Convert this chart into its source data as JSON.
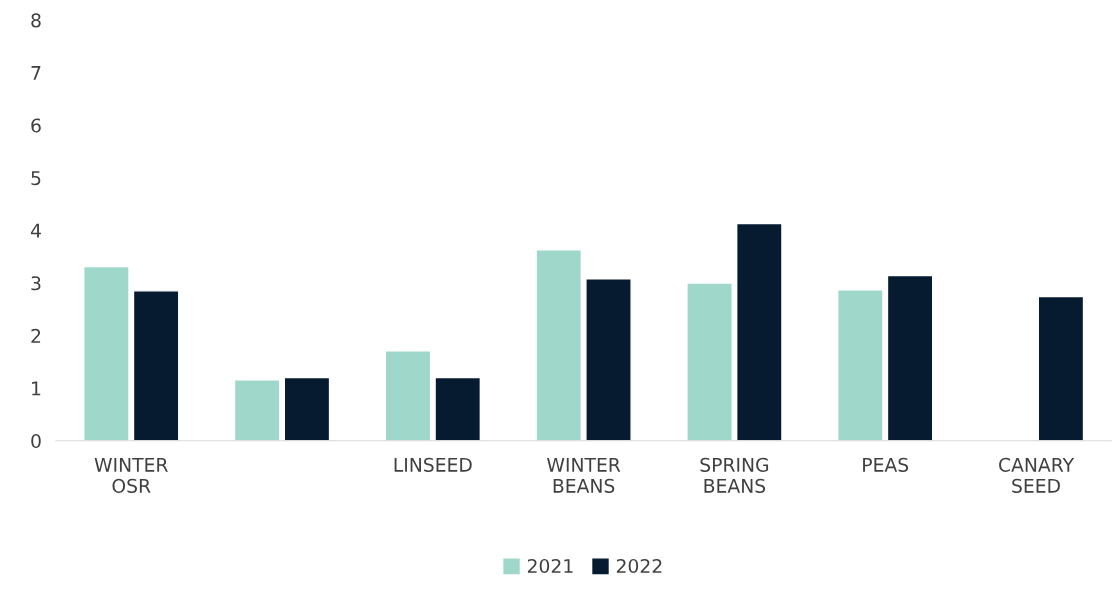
{
  "chart_data": {
    "type": "bar",
    "categories": [
      "WINTER OSR",
      null,
      "LINSEED",
      "WINTER BEANS",
      "SPRING BEANS",
      "PEAS",
      "CANARY SEED"
    ],
    "series": [
      {
        "name": "2021",
        "color": "#9fd8cb",
        "values": [
          3.31,
          1.16,
          1.71,
          3.63,
          3.0,
          2.87,
          null
        ]
      },
      {
        "name": "2022",
        "color": "#061a30",
        "values": [
          2.85,
          1.2,
          1.2,
          3.08,
          4.13,
          3.14,
          2.74
        ]
      }
    ],
    "ylim": [
      0,
      8
    ],
    "yticks": [
      0,
      1,
      2,
      3,
      4,
      5,
      6,
      7,
      8
    ],
    "grid": false,
    "legend": "bottom"
  }
}
